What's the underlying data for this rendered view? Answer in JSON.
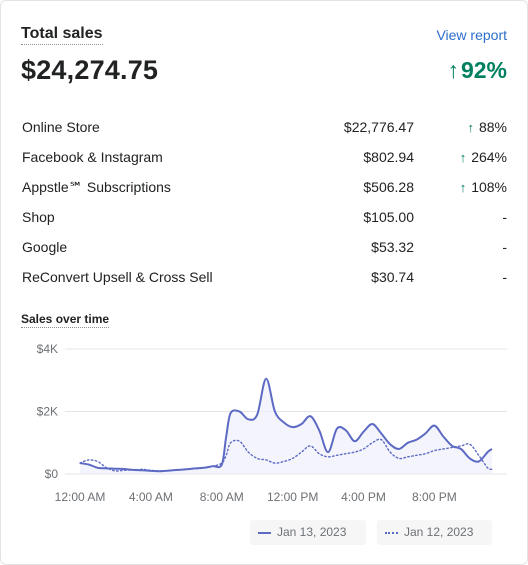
{
  "header": {
    "title": "Total sales",
    "view_report": "View report"
  },
  "total": {
    "value": "$24,274.75",
    "change_arrow": "↑",
    "change_value": "92%"
  },
  "breakdown": [
    {
      "name": "Online Store",
      "amount": "$22,776.47",
      "arrow": "↑",
      "change": "88%"
    },
    {
      "name": "Facebook & Instagram",
      "amount": "$802.94",
      "arrow": "↑",
      "change": "264%"
    },
    {
      "name": "Appstle℠ Subscriptions",
      "amount": "$506.28",
      "arrow": "↑",
      "change": "108%"
    },
    {
      "name": "Shop",
      "amount": "$105.00",
      "arrow": "",
      "change": "-"
    },
    {
      "name": "Google",
      "amount": "$53.32",
      "arrow": "",
      "change": "-"
    },
    {
      "name": "ReConvert Upsell & Cross Sell",
      "amount": "$30.74",
      "arrow": "",
      "change": "-"
    }
  ],
  "chart_title": "Sales over time",
  "colors": {
    "accent": "#2c6ecb",
    "positive": "#008060",
    "series": "#5c6ac4"
  },
  "chart_data": {
    "type": "line",
    "title": "Sales over time",
    "y_ticks": [
      "$0",
      "$2K",
      "$4K"
    ],
    "ylim": [
      0,
      4000
    ],
    "x_ticks": [
      "12:00 AM",
      "4:00 AM",
      "8:00 AM",
      "12:00 PM",
      "4:00 PM",
      "8:00 PM"
    ],
    "x_tick_hours": [
      0,
      4,
      8,
      12,
      16,
      20
    ],
    "xlim": [
      0,
      23.25
    ],
    "grid": true,
    "legend_position": "bottom-right",
    "series": [
      {
        "name": "Jan 13, 2023",
        "style": "solid",
        "x": [
          0,
          0.5,
          1,
          1.5,
          2,
          2.5,
          3,
          3.5,
          4,
          4.5,
          5,
          5.5,
          6,
          6.5,
          7,
          7.5,
          8,
          8.25,
          8.5,
          9,
          9.5,
          10,
          10.5,
          11,
          11.5,
          12,
          12.5,
          13,
          13.5,
          14,
          14.5,
          15,
          15.5,
          16,
          16.5,
          17,
          17.5,
          18,
          18.5,
          19,
          19.5,
          20,
          20.5,
          21,
          21.5,
          22,
          22.5,
          23,
          23.25
        ],
        "values": [
          350,
          300,
          200,
          180,
          170,
          160,
          130,
          120,
          100,
          90,
          110,
          130,
          150,
          180,
          200,
          250,
          300,
          1200,
          1950,
          2000,
          1750,
          1900,
          3050,
          2000,
          1650,
          1500,
          1600,
          1850,
          1400,
          700,
          1450,
          1400,
          1050,
          1350,
          1600,
          1300,
          950,
          800,
          1000,
          1100,
          1300,
          1550,
          1200,
          900,
          800,
          500,
          400,
          700,
          800
        ]
      },
      {
        "name": "Jan 12, 2023",
        "style": "dotted",
        "x": [
          0,
          0.5,
          1,
          1.5,
          2,
          2.5,
          3,
          3.5,
          4,
          4.5,
          5,
          5.5,
          6,
          6.5,
          7,
          7.5,
          8,
          8.25,
          8.5,
          9,
          9.5,
          10,
          10.5,
          11,
          11.5,
          12,
          12.5,
          13,
          13.5,
          14,
          14.5,
          15,
          15.5,
          16,
          16.5,
          17,
          17.5,
          18,
          18.5,
          19,
          19.5,
          20,
          20.5,
          21,
          21.5,
          22,
          22.5,
          23,
          23.25
        ],
        "values": [
          350,
          450,
          400,
          200,
          100,
          120,
          130,
          150,
          120,
          100,
          110,
          130,
          150,
          170,
          200,
          250,
          350,
          600,
          1000,
          1050,
          700,
          500,
          450,
          350,
          400,
          500,
          700,
          900,
          650,
          550,
          600,
          650,
          700,
          800,
          1000,
          1100,
          700,
          500,
          550,
          600,
          650,
          750,
          800,
          850,
          900,
          950,
          600,
          200,
          150
        ]
      }
    ]
  }
}
